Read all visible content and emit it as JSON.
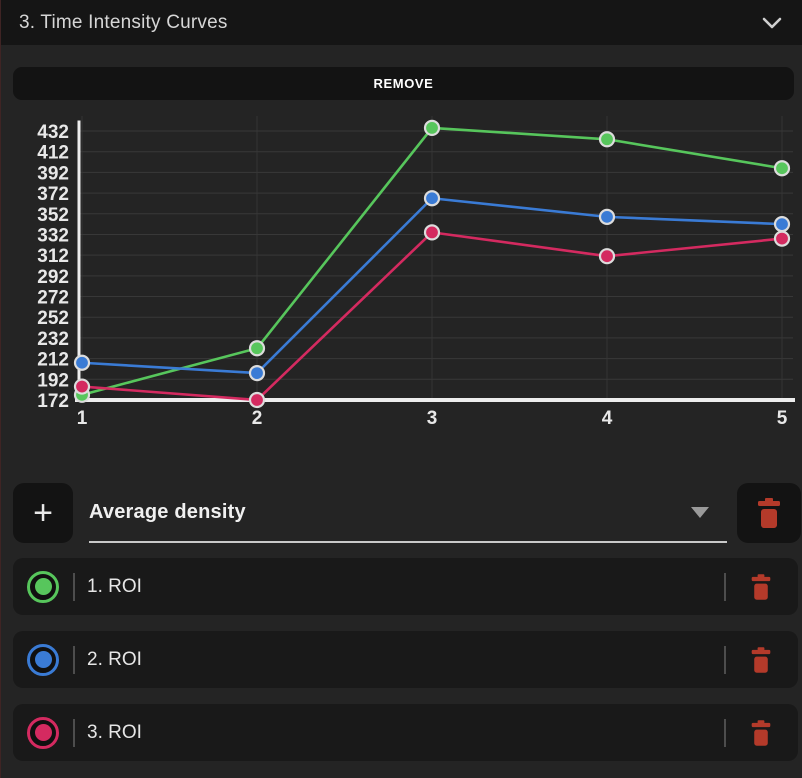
{
  "panel": {
    "title": "3. Time Intensity Curves",
    "remove_label": "REMOVE"
  },
  "icons": {
    "header_collapse": "chevron-down-icon",
    "add": "plus-icon",
    "dropdown_caret": "caret-down-icon",
    "delete": "trash-icon"
  },
  "colors": {
    "roi_green": "#57c65c",
    "roi_blue": "#3a7bd5",
    "roi_pink": "#d42a60",
    "danger_red": "#b43a2a",
    "panel_bg": "#242424",
    "header_bg": "#151515"
  },
  "chart_data": {
    "type": "line",
    "x": [
      1,
      2,
      3,
      4,
      5
    ],
    "xticks": [
      "1",
      "2",
      "3",
      "4",
      "5"
    ],
    "yticks": [
      172,
      192,
      212,
      232,
      252,
      272,
      292,
      312,
      332,
      352,
      372,
      392,
      412,
      432
    ],
    "ylim": [
      172,
      440
    ],
    "xlabel": "",
    "ylabel": "",
    "grid": true,
    "legend_position": "none",
    "series": [
      {
        "name": "1. ROI",
        "color": "#57c65c",
        "values": [
          177,
          222,
          435,
          424,
          396
        ]
      },
      {
        "name": "2. ROI",
        "color": "#3a7bd5",
        "values": [
          208,
          198,
          367,
          349,
          342
        ]
      },
      {
        "name": "3. ROI",
        "color": "#d42a60",
        "values": [
          185,
          172,
          334,
          311,
          328
        ]
      }
    ]
  },
  "controls": {
    "add_label": "+",
    "dropdown": {
      "value": "Average density"
    }
  },
  "roi_list": [
    {
      "label": "1. ROI",
      "color": "#57c65c"
    },
    {
      "label": "2. ROI",
      "color": "#3a7bd5"
    },
    {
      "label": "3. ROI",
      "color": "#d42a60"
    }
  ]
}
